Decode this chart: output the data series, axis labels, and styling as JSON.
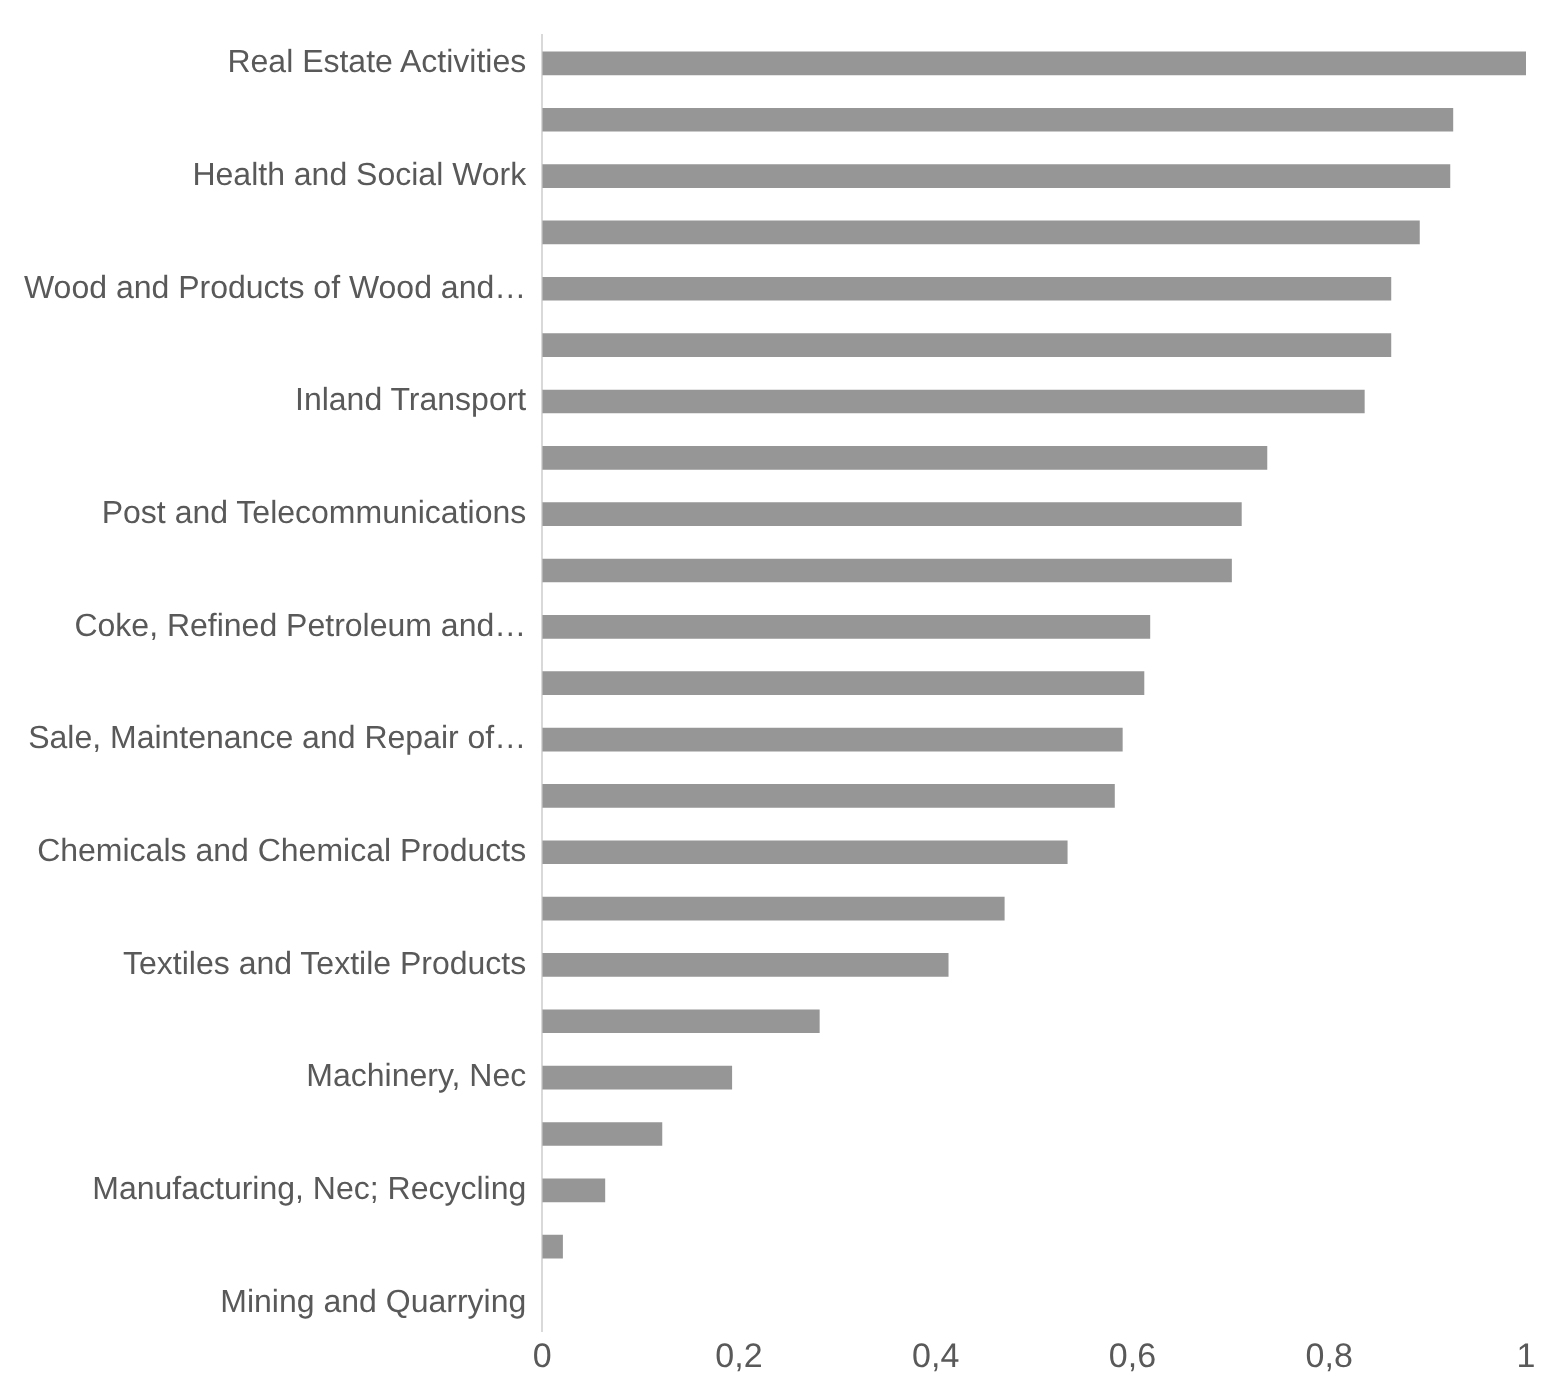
{
  "chart_data": {
    "type": "bar",
    "orientation": "horizontal",
    "categories": [
      "Real Estate Activities",
      null,
      "Health and Social Work",
      null,
      "Wood and Products of Wood and…",
      null,
      "Inland Transport",
      null,
      "Post and Telecommunications",
      null,
      "Coke, Refined Petroleum and…",
      null,
      "Sale, Maintenance and Repair of…",
      null,
      "Chemicals and Chemical Products",
      null,
      "Textiles and Textile Products",
      null,
      "Machinery, Nec",
      null,
      "Manufacturing, Nec; Recycling",
      null,
      "Mining and Quarrying"
    ],
    "values": [
      1.0,
      0.926,
      0.923,
      0.892,
      0.863,
      0.863,
      0.836,
      0.737,
      0.711,
      0.701,
      0.618,
      0.612,
      0.59,
      0.582,
      0.534,
      0.47,
      0.413,
      0.282,
      0.193,
      0.122,
      0.064,
      0.021,
      0
    ],
    "color": "#969696",
    "xlim": [
      0,
      1
    ],
    "xticks": [
      0,
      {
        "value": 0.2,
        "label": "0,2"
      },
      {
        "value": 0.4,
        "label": "0,4"
      },
      {
        "value": 0.6,
        "label": "0,6"
      },
      {
        "value": 0.8,
        "label": "0,8"
      },
      1
    ],
    "grid": false,
    "legend": false
  }
}
